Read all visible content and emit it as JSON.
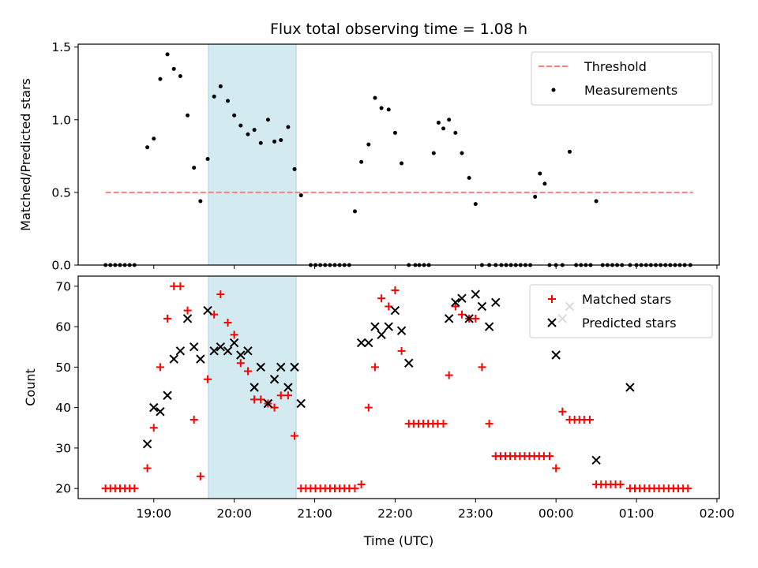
{
  "chart_data": {
    "type": "scatter",
    "title": "Flux total observing time = 1.08 h",
    "xlabel": "Time (UTC)",
    "x_unit": "hours",
    "x_tick_values": [
      19,
      20,
      21,
      22,
      23,
      24,
      25,
      26
    ],
    "xticks": [
      "19:00",
      "20:00",
      "21:00",
      "22:00",
      "23:00",
      "00:00",
      "01:00",
      "02:00"
    ],
    "xlim": [
      18.06,
      26.03
    ],
    "highlight_span": [
      19.68,
      20.77
    ],
    "highlight_color": "#d3eaf1",
    "panels": [
      {
        "ylabel": "Matched/Predicted stars",
        "ylim": [
          0,
          1.52
        ],
        "yticks": [
          "0.0",
          "0.5",
          "1.0",
          "1.5"
        ],
        "ytick_values": [
          0,
          0.5,
          1.0,
          1.5
        ],
        "legend_position": "top-right",
        "series": [
          {
            "name": "Threshold",
            "kind": "dashed-line",
            "color": "#ff7f7f",
            "x": [
              18.4,
              25.7
            ],
            "y": [
              0.5,
              0.5
            ]
          },
          {
            "name": "Measurements",
            "kind": "dot",
            "color": "#000000",
            "x": [
              18.4,
              18.46,
              18.52,
              18.58,
              18.64,
              18.7,
              18.76,
              18.92,
              19.0,
              19.08,
              19.17,
              19.25,
              19.33,
              19.42,
              19.5,
              19.58,
              19.67,
              19.75,
              19.83,
              19.92,
              20.0,
              20.08,
              20.17,
              20.25,
              20.33,
              20.42,
              20.5,
              20.58,
              20.67,
              20.75,
              20.83,
              20.95,
              21.01,
              21.07,
              21.13,
              21.19,
              21.25,
              21.31,
              21.37,
              21.43,
              21.5,
              21.58,
              21.67,
              21.75,
              21.83,
              21.92,
              22.0,
              22.08,
              22.17,
              22.25,
              22.3,
              22.36,
              22.42,
              22.48,
              22.54,
              22.6,
              22.67,
              22.75,
              22.83,
              22.92,
              23.0,
              23.08,
              23.17,
              23.25,
              23.32,
              23.38,
              23.44,
              23.5,
              23.56,
              23.62,
              23.68,
              23.74,
              23.8,
              23.86,
              23.92,
              24.0,
              24.08,
              24.17,
              24.25,
              24.31,
              24.37,
              24.43,
              24.5,
              24.58,
              24.64,
              24.7,
              24.76,
              24.82,
              24.92,
              25.0,
              25.06,
              25.12,
              25.18,
              25.24,
              25.3,
              25.36,
              25.42,
              25.48,
              25.54,
              25.6,
              25.67
            ],
            "y": [
              0,
              0,
              0,
              0,
              0,
              0,
              0,
              0.81,
              0.87,
              1.28,
              1.45,
              1.35,
              1.3,
              1.03,
              0.67,
              0.44,
              0.73,
              1.16,
              1.23,
              1.13,
              1.03,
              0.96,
              0.9,
              0.93,
              0.84,
              1.0,
              0.85,
              0.86,
              0.95,
              0.66,
              0.48,
              0,
              0,
              0,
              0,
              0,
              0,
              0,
              0,
              0,
              0.37,
              0.71,
              0.83,
              1.15,
              1.08,
              1.07,
              0.91,
              0.7,
              0,
              0,
              0,
              0,
              0,
              0.77,
              0.98,
              0.94,
              1.0,
              0.91,
              0.77,
              0.6,
              0.42,
              0,
              0,
              0,
              0,
              0,
              0,
              0,
              0,
              0,
              0,
              0.47,
              0.63,
              0.56,
              0,
              0,
              0,
              0.78,
              0,
              0,
              0,
              0,
              0.44,
              0,
              0,
              0,
              0,
              0,
              0,
              0,
              0,
              0,
              0,
              0,
              0,
              0,
              0,
              0,
              0,
              0,
              0
            ]
          }
        ]
      },
      {
        "ylabel": "Count",
        "ylim": [
          17.5,
          72.5
        ],
        "yticks": [
          "20",
          "30",
          "40",
          "50",
          "60",
          "70"
        ],
        "ytick_values": [
          20,
          30,
          40,
          50,
          60,
          70
        ],
        "legend_position": "top-right",
        "series": [
          {
            "name": "Matched stars",
            "kind": "plus",
            "color": "#ff0000",
            "x": [
              18.4,
              18.46,
              18.52,
              18.58,
              18.64,
              18.7,
              18.76,
              18.92,
              19.0,
              19.08,
              19.17,
              19.25,
              19.33,
              19.42,
              19.5,
              19.58,
              19.67,
              19.75,
              19.83,
              19.92,
              20.0,
              20.08,
              20.17,
              20.25,
              20.33,
              20.42,
              20.5,
              20.58,
              20.67,
              20.75,
              20.83,
              20.89,
              20.95,
              21.01,
              21.07,
              21.13,
              21.19,
              21.25,
              21.31,
              21.37,
              21.43,
              21.5,
              21.58,
              21.67,
              21.75,
              21.83,
              21.92,
              22.0,
              22.08,
              22.17,
              22.23,
              22.29,
              22.35,
              22.41,
              22.47,
              22.53,
              22.6,
              22.67,
              22.75,
              22.83,
              22.92,
              23.0,
              23.08,
              23.17,
              23.25,
              23.31,
              23.37,
              23.43,
              23.49,
              23.55,
              23.61,
              23.67,
              23.73,
              23.79,
              23.85,
              23.92,
              24.0,
              24.08,
              24.17,
              24.23,
              24.29,
              24.35,
              24.42,
              24.5,
              24.56,
              24.62,
              24.68,
              24.74,
              24.8,
              24.92,
              24.98,
              25.04,
              25.1,
              25.16,
              25.22,
              25.28,
              25.34,
              25.4,
              25.46,
              25.52,
              25.58,
              25.64
            ],
            "y": [
              20,
              20,
              20,
              20,
              20,
              20,
              20,
              25,
              35,
              50,
              62,
              70,
              70,
              64,
              37,
              23,
              47,
              63,
              68,
              61,
              58,
              51,
              49,
              42,
              42,
              41,
              40,
              43,
              43,
              33,
              20,
              20,
              20,
              20,
              20,
              20,
              20,
              20,
              20,
              20,
              20,
              20,
              21,
              40,
              50,
              67,
              65,
              69,
              54,
              36,
              36,
              36,
              36,
              36,
              36,
              36,
              36,
              48,
              65,
              63,
              62,
              62,
              50,
              36,
              28,
              28,
              28,
              28,
              28,
              28,
              28,
              28,
              28,
              28,
              28,
              28,
              25,
              39,
              37,
              37,
              37,
              37,
              37,
              21,
              21,
              21,
              21,
              21,
              21,
              20,
              20,
              20,
              20,
              20,
              20,
              20,
              20,
              20,
              20,
              20,
              20,
              20
            ]
          },
          {
            "name": "Predicted stars",
            "kind": "x",
            "color": "#000000",
            "x": [
              18.92,
              19.0,
              19.08,
              19.17,
              19.25,
              19.33,
              19.42,
              19.5,
              19.58,
              19.67,
              19.75,
              19.83,
              19.92,
              20.0,
              20.08,
              20.17,
              20.25,
              20.33,
              20.42,
              20.5,
              20.58,
              20.67,
              20.75,
              20.83,
              21.58,
              21.67,
              21.75,
              21.83,
              21.92,
              22.0,
              22.08,
              22.17,
              22.67,
              22.75,
              22.83,
              22.92,
              23.0,
              23.08,
              23.17,
              23.25,
              24.0,
              24.08,
              24.17,
              24.5,
              24.92
            ],
            "y": [
              31,
              40,
              39,
              43,
              52,
              54,
              62,
              55,
              52,
              64,
              54,
              55,
              54,
              56,
              53,
              54,
              45,
              50,
              41,
              47,
              50,
              45,
              50,
              41,
              56,
              56,
              60,
              58,
              60,
              64,
              59,
              51,
              62,
              66,
              67,
              62,
              68,
              65,
              60,
              66,
              53,
              62,
              65,
              27,
              45
            ]
          }
        ]
      }
    ]
  }
}
